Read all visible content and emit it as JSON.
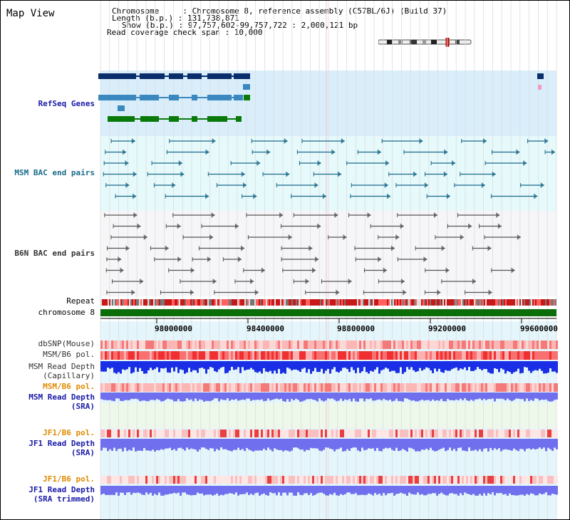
{
  "window": {
    "title": "Map View"
  },
  "info": {
    "line1": "Chromosome     : Chromosome 8, reference assembly (C57BL/6J) (Build 37)",
    "line2": "Length (b.p.) : 131,738,871",
    "line3": "Show (b.p.) : 97,757,602-99,757,722 : 2,000,121 bp",
    "line4": "Read coverage check span : 10,000"
  },
  "tracks": {
    "refseq": "RefSeq Genes",
    "msm_bac": "MSM BAC end pairs",
    "b6n_bac": "B6N BAC end pairs",
    "repeat": "Repeat",
    "chromosome": "chromosome 8",
    "dbsnp": "dbSNP(Mouse)",
    "msm_pol": "MSM/B6 pol.",
    "msm_depth_cap_1": "MSM Read Depth",
    "msm_depth_cap_2": "(Capillary)",
    "msm_pol2": "MSM/B6 pol.",
    "msm_depth_sra_1": "MSM Read Depth",
    "msm_depth_sra_2": "(SRA)",
    "jf1_pol": "JF1/B6 pol.",
    "jf1_depth_sra_1": "JF1 Read Depth",
    "jf1_depth_sra_2": "(SRA)",
    "jf1_pol2": "JF1/B6 pol.",
    "jf1_depth_trim_1": "JF1 Read Depth",
    "jf1_depth_trim_2": "(SRA trimmed)"
  },
  "axis": {
    "ticks": [
      "98000000",
      "98400000",
      "98800000",
      "99200000",
      "99600000"
    ]
  },
  "colors": {
    "refseq_bg": "#d9eefa",
    "msm_bac_bg": "#e6f9fb",
    "gene_dark": "#0a2e6b",
    "gene_mid": "#3b88c0",
    "gene_green": "#0a7a0a",
    "bac_teal": "#1a6a8a",
    "bac_gray": "#555555",
    "chrom_green": "#0b6e0b",
    "depth_blue": "#1a2ee6",
    "depth_light": "#7070ee"
  }
}
